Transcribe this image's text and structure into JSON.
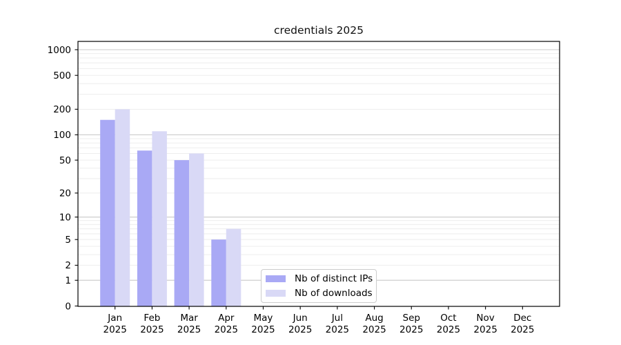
{
  "chart_data": {
    "type": "bar",
    "title": "credentials 2025",
    "categories": [
      "Jan",
      "Feb",
      "Mar",
      "Apr",
      "May",
      "Jun",
      "Jul",
      "Aug",
      "Sep",
      "Oct",
      "Nov",
      "Dec"
    ],
    "x_tick_second_line": "2025",
    "series": [
      {
        "name": "Nb of distinct IPs",
        "color": "#a9a9f5",
        "values": [
          150,
          65,
          50,
          5,
          0,
          0,
          0,
          0,
          0,
          0,
          0,
          0
        ]
      },
      {
        "name": "Nb of downloads",
        "color": "#d9d9f6",
        "values": [
          200,
          110,
          60,
          7,
          0,
          0,
          0,
          0,
          0,
          0,
          0,
          0
        ]
      }
    ],
    "xlabel": "",
    "ylabel": "",
    "yscale": "symlog",
    "ylim": [
      0,
      1250
    ],
    "y_ticks": [
      0,
      1,
      2,
      5,
      10,
      20,
      50,
      100,
      200,
      500,
      1000
    ],
    "major_gridlines": [
      1,
      10,
      100,
      1000
    ],
    "minor_gridlines": [
      2,
      3,
      4,
      5,
      6,
      7,
      8,
      9,
      20,
      30,
      40,
      50,
      60,
      70,
      80,
      90,
      200,
      300,
      400,
      500,
      600,
      700,
      800,
      900
    ],
    "grid": true,
    "legend_position": "lower-center-inside"
  },
  "legend": {
    "items": [
      {
        "label": "Nb of distinct IPs",
        "color": "#a9a9f5"
      },
      {
        "label": "Nb of downloads",
        "color": "#d9d9f6"
      }
    ]
  },
  "colors": {
    "background": "#ffffff",
    "axis": "#000000",
    "tick_text": "#000000",
    "major_grid": "#c9c9c9",
    "minor_grid": "#ededed",
    "bar_dark": "#a9a9f5",
    "bar_light": "#d9d9f6"
  }
}
